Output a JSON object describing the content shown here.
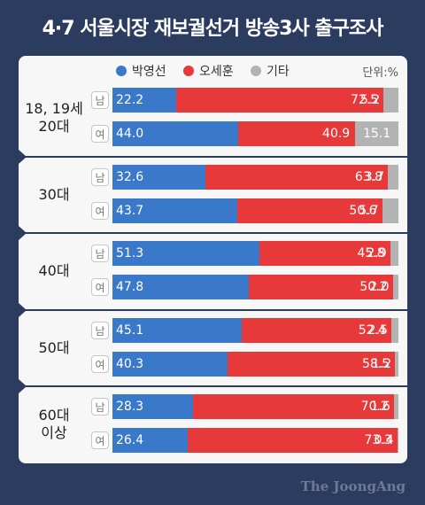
{
  "title": "4·7 서울시장 재보궐선거 방송3사 출구조사",
  "brand": "The JoongAng",
  "colors": {
    "park": "#3a78c9",
    "oh": "#e8393a",
    "other": "#b3b3b3"
  },
  "chart_data": {
    "type": "bar",
    "orientation": "horizontal",
    "stacked": true,
    "unit_label": "단위:%",
    "legend": [
      "박영선",
      "오세훈",
      "기타"
    ],
    "groups": [
      {
        "label_lines": [
          "18, 19세",
          "20대"
        ],
        "rows": [
          {
            "gender": "남",
            "values": [
              22.2,
              72.5,
              5.2
            ]
          },
          {
            "gender": "여",
            "values": [
              44.0,
              40.9,
              15.1
            ]
          }
        ]
      },
      {
        "label_lines": [
          "30대"
        ],
        "rows": [
          {
            "gender": "남",
            "values": [
              32.6,
              63.8,
              3.7
            ]
          },
          {
            "gender": "여",
            "values": [
              43.7,
              50.6,
              5.7
            ]
          }
        ]
      },
      {
        "label_lines": [
          "40대"
        ],
        "rows": [
          {
            "gender": "남",
            "values": [
              51.3,
              45.8,
              2.9
            ]
          },
          {
            "gender": "여",
            "values": [
              47.8,
              50.2,
              2.0
            ]
          }
        ]
      },
      {
        "label_lines": [
          "50대"
        ],
        "rows": [
          {
            "gender": "남",
            "values": [
              45.1,
              52.4,
              2.5
            ]
          },
          {
            "gender": "여",
            "values": [
              40.3,
              58.5,
              1.2
            ]
          }
        ]
      },
      {
        "label_lines": [
          "60대",
          "이상"
        ],
        "rows": [
          {
            "gender": "남",
            "values": [
              28.3,
              70.2,
              1.6
            ]
          },
          {
            "gender": "여",
            "values": [
              26.4,
              73.3,
              0.4
            ]
          }
        ]
      }
    ]
  }
}
